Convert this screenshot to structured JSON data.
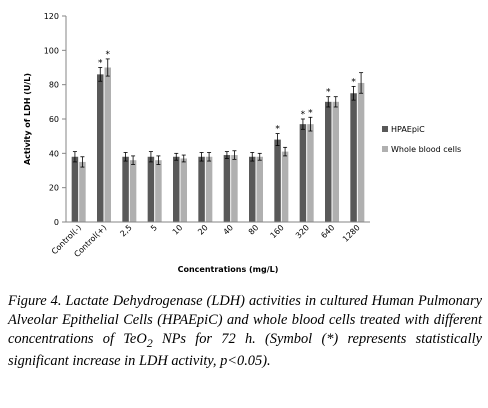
{
  "chart_data": {
    "type": "bar",
    "categories": [
      "Control(-)",
      "Control(+)",
      "2,5",
      "5",
      "10",
      "20",
      "40",
      "80",
      "160",
      "320",
      "640",
      "1280"
    ],
    "series": [
      {
        "name": "HPAEpiC",
        "color": "#595959",
        "values": [
          38,
          86,
          38,
          38,
          38,
          38,
          39,
          38,
          48,
          57,
          70,
          75
        ],
        "errors": [
          3,
          4,
          2.5,
          3,
          2,
          2.5,
          2,
          2.5,
          3.5,
          3,
          3,
          4
        ],
        "significant": [
          false,
          true,
          false,
          false,
          false,
          false,
          false,
          false,
          true,
          true,
          true,
          true
        ]
      },
      {
        "name": "Whole blood cells",
        "color": "#b0b0b0",
        "values": [
          35,
          90,
          36,
          36,
          37,
          38,
          39,
          38,
          41,
          57,
          70,
          81
        ],
        "errors": [
          3,
          5,
          2.5,
          2.5,
          2,
          2.5,
          2.5,
          2,
          2.5,
          4,
          3,
          6
        ],
        "significant": [
          false,
          true,
          false,
          false,
          false,
          false,
          false,
          false,
          false,
          true,
          false,
          false
        ]
      }
    ],
    "significance_symbol": "*",
    "ylabel": "Activity of LDH (U/L)",
    "xlabel": "Concentrations (mg/L)",
    "ylim": [
      0,
      120
    ],
    "yticks": [
      "0",
      "20",
      "40",
      "60",
      "80",
      "100",
      "120"
    ],
    "grid": false,
    "legend_position": "right"
  },
  "caption": {
    "lead": "Figure 4.",
    "text": "Lactate Dehydrogenase (LDH) activities in cultured Human Pulmonary Alveolar Epithelial Cells (HPAEpiC) and whole blood cells treated with different concentrations of TeO",
    "subscript": "2",
    "text_after": " NPs for 72 h. (Symbol (*) represents statistically significant increase in LDH activity, p<0.05)."
  }
}
